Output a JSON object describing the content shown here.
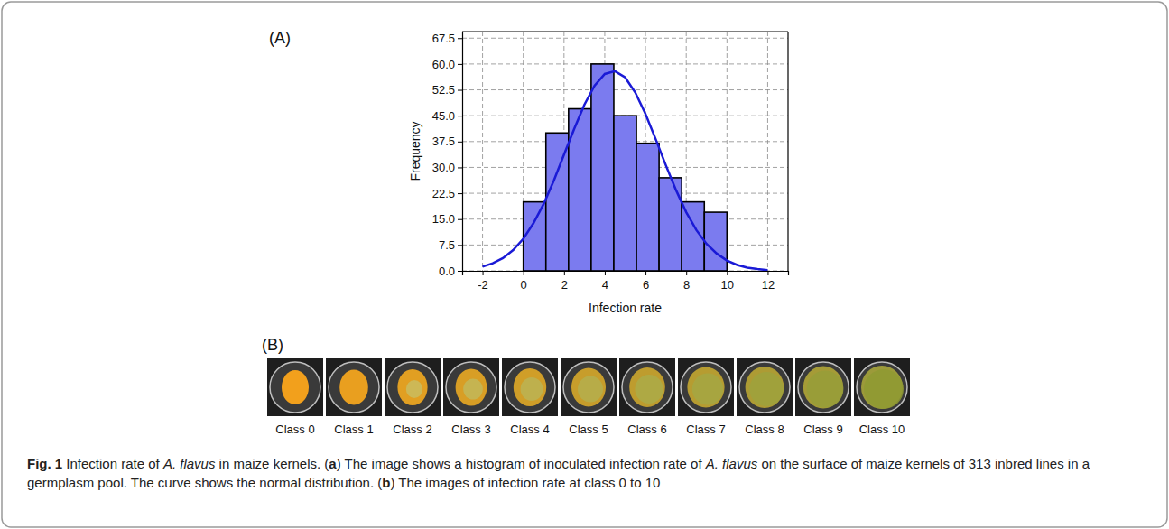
{
  "chart_data": {
    "type": "histogram",
    "xlabel": "Infection rate",
    "ylabel": "Frequency",
    "bins": [
      0,
      1.111,
      2.222,
      3.333,
      4.444,
      5.556,
      6.667,
      7.778,
      8.889,
      10
    ],
    "values": [
      20,
      40,
      47,
      60,
      45,
      37,
      27,
      20,
      17
    ],
    "color": "#7b7bef",
    "series": [
      {
        "type": "line",
        "color": "#1a1ad6",
        "x": [
          -2,
          -1.5,
          -1,
          -0.5,
          0,
          0.5,
          1,
          1.5,
          2,
          2.5,
          3,
          3.5,
          4,
          4.5,
          5,
          5.5,
          6,
          6.5,
          7,
          7.5,
          8,
          8.5,
          9,
          9.5,
          10,
          10.5,
          11,
          11.5,
          12
        ],
        "values": [
          1.2,
          2.2,
          3.7,
          6.0,
          9.3,
          13.8,
          19.4,
          26.2,
          33.7,
          41.2,
          48.2,
          53.7,
          57.1,
          57.9,
          56.1,
          51.7,
          45.5,
          38.2,
          30.6,
          23.4,
          17.0,
          11.8,
          7.8,
          5.0,
          3.0,
          1.7,
          0.9,
          0.5,
          0.2
        ]
      }
    ],
    "xlim": [
      -3,
      13
    ],
    "xticks": [
      -2,
      0,
      2,
      4,
      6,
      8,
      10,
      12
    ],
    "ylim": [
      0,
      69.4
    ],
    "yticks": [
      {
        "value": 0,
        "label": "0.0"
      },
      7.5,
      {
        "value": 15,
        "label": "15.0"
      },
      22.5,
      {
        "value": 30,
        "label": "30.0"
      },
      37.5,
      {
        "value": 45,
        "label": "45.0"
      },
      52.5,
      {
        "value": 60,
        "label": "60.0"
      },
      67.5
    ],
    "grid": true
  },
  "figure": {
    "panel_labels": [
      "(A)",
      "(B)"
    ],
    "classes": [
      "Class 0",
      "Class 1",
      "Class 2",
      "Class 3",
      "Class 4",
      "Class 5",
      "Class 6",
      "Class 7",
      "Class 8",
      "Class 9",
      "Class 10"
    ],
    "caption": [
      {
        "text": "Fig. 1",
        "bold": true
      },
      {
        "text": " Infection rate of "
      },
      {
        "text": "A. flavus",
        "italic": true
      },
      {
        "text": " in maize kernels. ("
      },
      {
        "text": "a",
        "bold": true
      },
      {
        "text": ") The image shows a histogram of inoculated infection rate of "
      },
      {
        "text": "A. flavus",
        "italic": true
      },
      {
        "text": " on the surface of maize kernels of 313 inbred lines in a germplasm pool. The curve shows the normal distribution. ("
      },
      {
        "text": "b",
        "bold": true
      },
      {
        "text": ") The images of infection rate at class 0 to 10"
      }
    ]
  }
}
